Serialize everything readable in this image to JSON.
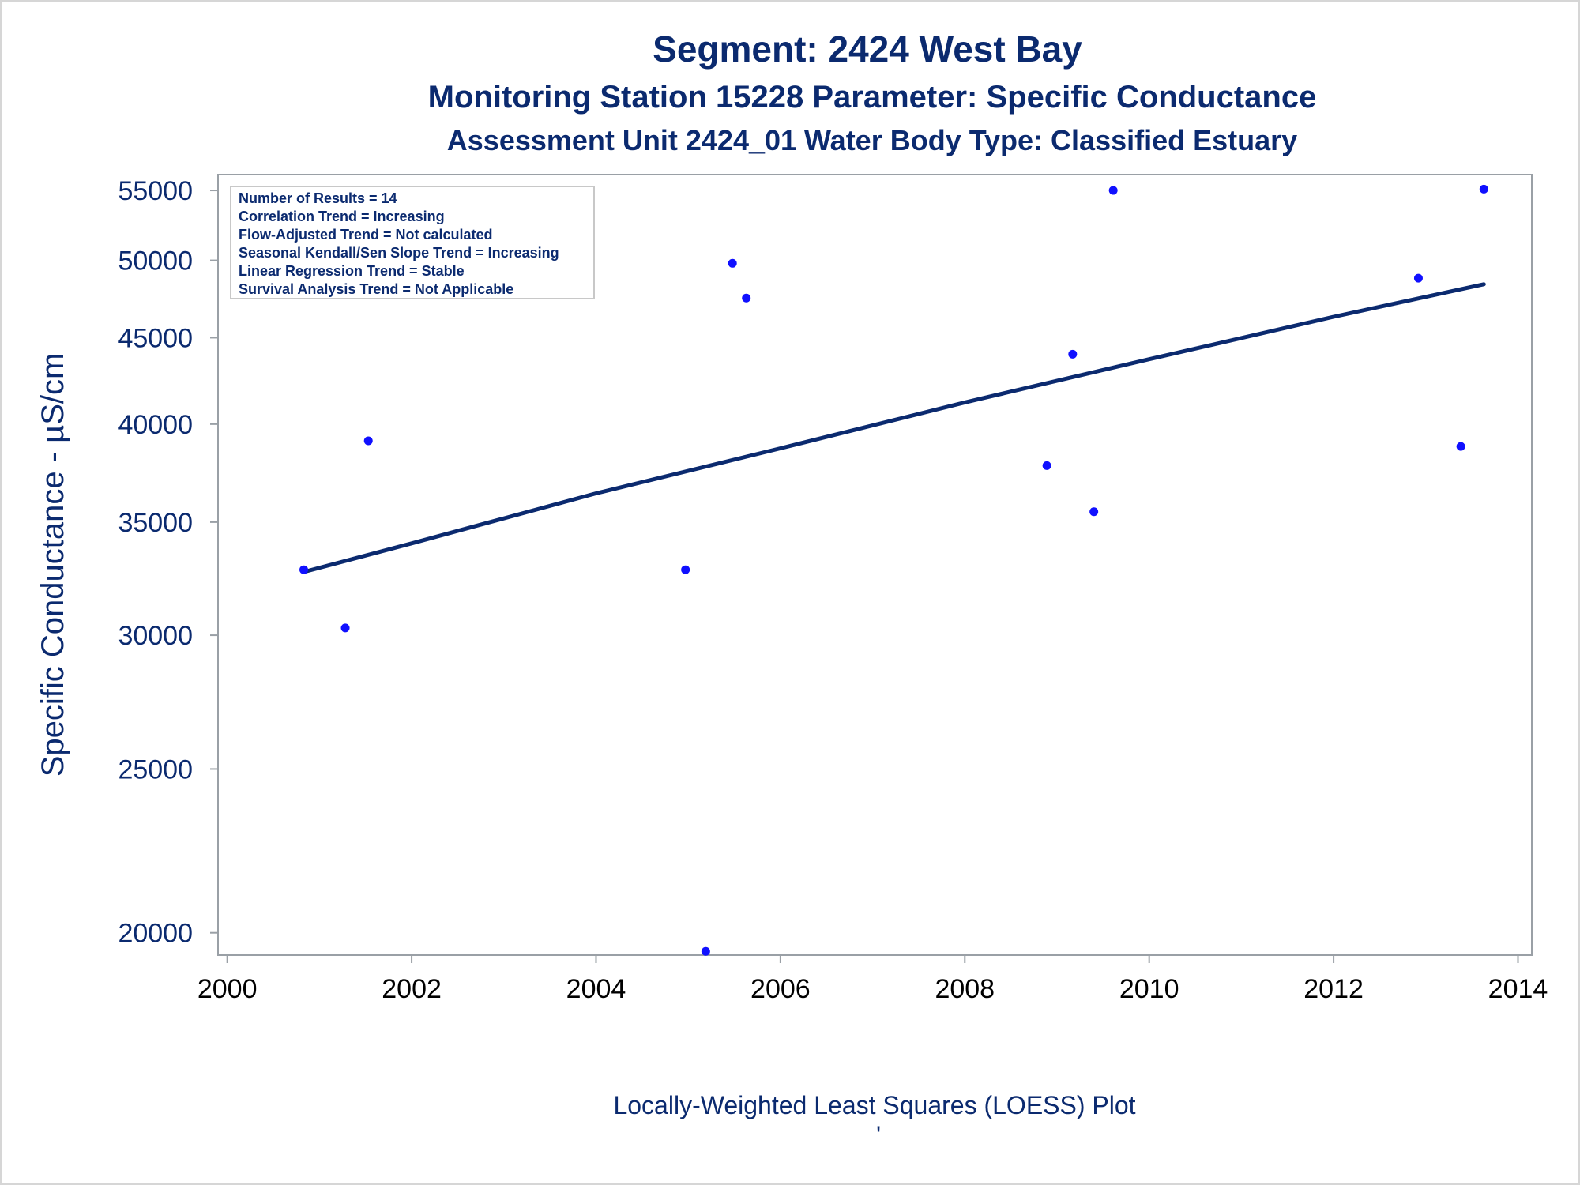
{
  "chart_data": {
    "type": "scatter",
    "title": "Segment: 2424  West Bay",
    "subtitle": "Monitoring Station 15228 Parameter: Specific Conductance",
    "subtitle2": "Assessment Unit 2424_01   Water Body Type: Classified Estuary",
    "ylabel": "Specific Conductance -  µS/cm",
    "xlabel": "Locally-Weighted Least Squares (LOESS) Plot",
    "footnote": "'",
    "x_scale": "linear",
    "y_scale": "log",
    "xlim": [
      1999.9,
      2014.15
    ],
    "ylim": [
      19400,
      56200
    ],
    "x_ticks": [
      "2000",
      "2002",
      "2004",
      "2006",
      "2008",
      "2010",
      "2012",
      "2014"
    ],
    "y_ticks": [
      "20000",
      "25000",
      "30000",
      "35000",
      "40000",
      "45000",
      "50000",
      "55000"
    ],
    "grid": false,
    "stats_box_placement": "top-left",
    "stats_lines": [
      "Number of Results = 14",
      "Correlation Trend = Increasing",
      "Flow-Adjusted Trend = Not calculated",
      "Seasonal Kendall/Sen Slope Trend = Increasing",
      "Linear Regression Trend = Stable",
      "Survival Analysis Trend = Not Applicable"
    ],
    "series": [
      {
        "type": "scatter",
        "color": "#1010ff",
        "points": [
          {
            "x": 2000.83,
            "y": 32800
          },
          {
            "x": 2001.28,
            "y": 30300
          },
          {
            "x": 2001.53,
            "y": 39100
          },
          {
            "x": 2004.97,
            "y": 32800
          },
          {
            "x": 2005.19,
            "y": 19500
          },
          {
            "x": 2005.48,
            "y": 49800
          },
          {
            "x": 2005.63,
            "y": 47500
          },
          {
            "x": 2008.89,
            "y": 37800
          },
          {
            "x": 2009.17,
            "y": 44000
          },
          {
            "x": 2009.4,
            "y": 35500
          },
          {
            "x": 2009.61,
            "y": 55000
          },
          {
            "x": 2012.92,
            "y": 48800
          },
          {
            "x": 2013.38,
            "y": 38800
          },
          {
            "x": 2013.63,
            "y": 55100
          }
        ]
      },
      {
        "type": "line",
        "color": "#0b2a6f",
        "points": [
          {
            "x": 2000.83,
            "y": 32700
          },
          {
            "x": 2002.0,
            "y": 34000
          },
          {
            "x": 2004.0,
            "y": 36400
          },
          {
            "x": 2006.0,
            "y": 38700
          },
          {
            "x": 2008.0,
            "y": 41200
          },
          {
            "x": 2010.0,
            "y": 43700
          },
          {
            "x": 2012.0,
            "y": 46300
          },
          {
            "x": 2013.63,
            "y": 48400
          }
        ]
      }
    ]
  },
  "colors": {
    "text": "#0b2a6f",
    "axis": "#9aa0a6",
    "marker": "#1010ff",
    "line": "#0b2a6f"
  }
}
